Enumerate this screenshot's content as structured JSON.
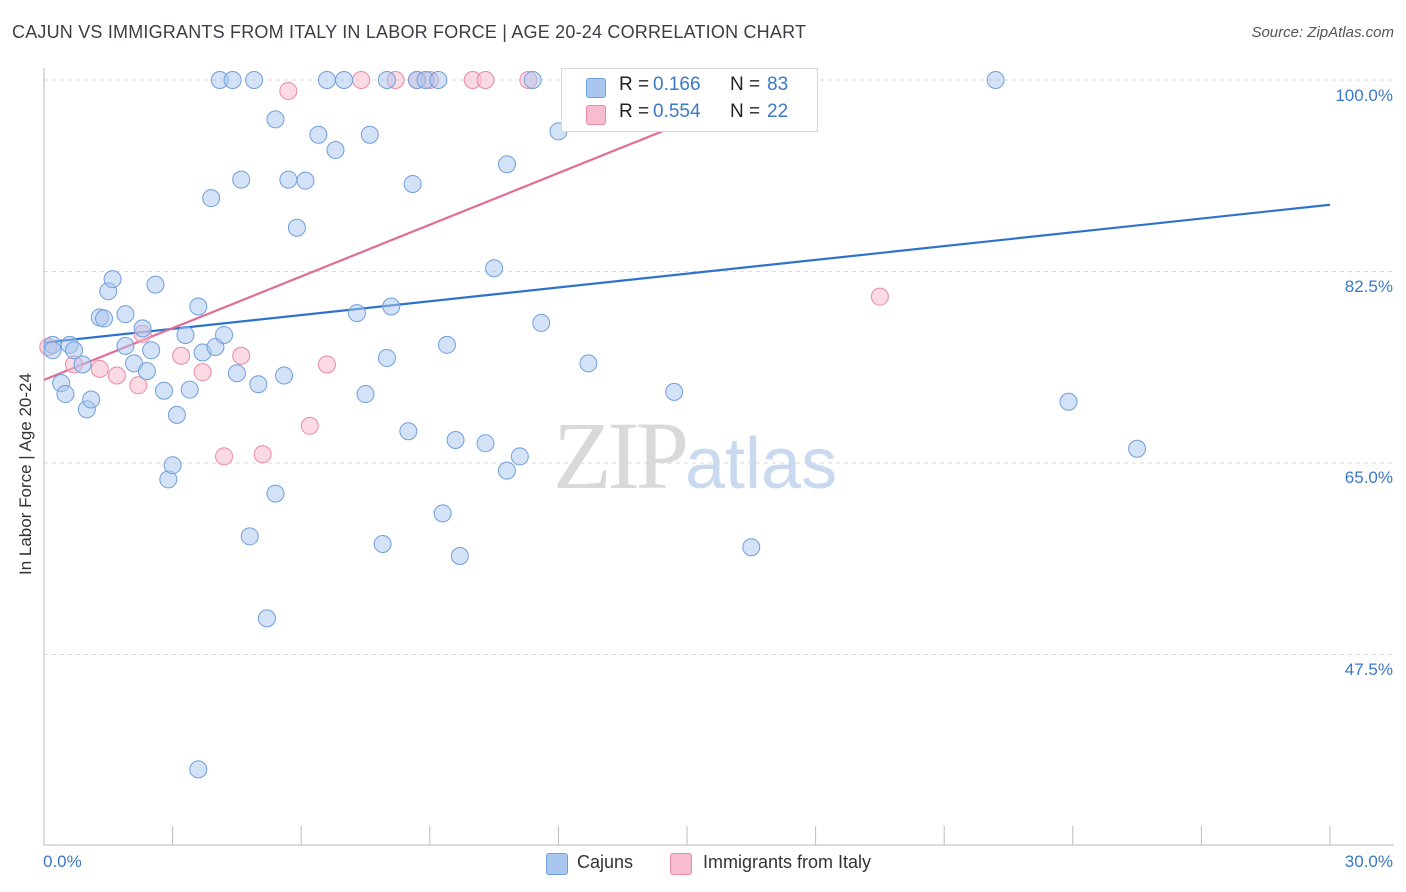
{
  "header": {
    "title": "CAJUN VS IMMIGRANTS FROM ITALY IN LABOR FORCE | AGE 20-24 CORRELATION CHART",
    "source": "Source: ZipAtlas.com"
  },
  "watermark": {
    "zip": "ZIP",
    "atlas": "atlas"
  },
  "legend": {
    "cajuns": {
      "r_label": "R =",
      "r_value": "0.166",
      "n_label": "N =",
      "n_value": "83"
    },
    "italy": {
      "r_label": "R =",
      "r_value": "0.554",
      "n_label": "N =",
      "n_value": "22"
    }
  },
  "bottom_legend": {
    "cajuns": "Cajuns",
    "italy": "Immigrants from Italy"
  },
  "colors": {
    "cajun_fill": "#a9c6ef",
    "cajun_stroke": "#6f9fdc",
    "cajun_line": "#2f72c9",
    "italy_fill": "#f7bccd",
    "italy_stroke": "#e98aa6",
    "italy_line": "#e06d95",
    "tick_text": "#3a78c8"
  },
  "axes": {
    "ylabel": "In Labor Force | Age 20-24",
    "yticks": [
      "100.0%",
      "82.5%",
      "65.0%",
      "47.5%"
    ],
    "xticks": [
      "0.0%",
      "30.0%"
    ]
  },
  "chart_data": {
    "type": "scatter",
    "title": "CAJUN VS IMMIGRANTS FROM ITALY IN LABOR FORCE | AGE 20-24 CORRELATION CHART",
    "xlabel": "",
    "ylabel": "In Labor Force | Age 20-24",
    "xlim": [
      0,
      30
    ],
    "ylim": [
      31,
      102
    ],
    "grid": true,
    "series": [
      {
        "name": "Cajuns",
        "r": 0.166,
        "n": 83,
        "trend": {
          "x": [
            0,
            30
          ],
          "y": [
            76.0,
            88.6
          ]
        },
        "points": [
          [
            0.2,
            75.8
          ],
          [
            0.2,
            75.3
          ],
          [
            0.4,
            72.3
          ],
          [
            0.5,
            71.3
          ],
          [
            0.6,
            75.8
          ],
          [
            0.7,
            75.3
          ],
          [
            0.9,
            74.0
          ],
          [
            1.0,
            69.9
          ],
          [
            1.1,
            70.8
          ],
          [
            1.3,
            78.3
          ],
          [
            1.4,
            78.2
          ],
          [
            1.5,
            80.7
          ],
          [
            1.6,
            81.8
          ],
          [
            1.9,
            75.7
          ],
          [
            1.9,
            78.6
          ],
          [
            2.1,
            74.1
          ],
          [
            2.3,
            77.3
          ],
          [
            2.4,
            73.4
          ],
          [
            2.5,
            75.3
          ],
          [
            2.6,
            81.3
          ],
          [
            2.8,
            71.6
          ],
          [
            2.9,
            63.5
          ],
          [
            3.0,
            64.8
          ],
          [
            3.1,
            69.4
          ],
          [
            3.3,
            76.7
          ],
          [
            3.4,
            71.7
          ],
          [
            3.6,
            79.3
          ],
          [
            3.7,
            75.1
          ],
          [
            3.9,
            89.2
          ],
          [
            4.0,
            75.6
          ],
          [
            4.1,
            100.0
          ],
          [
            4.2,
            76.7
          ],
          [
            4.4,
            100.0
          ],
          [
            4.5,
            73.2
          ],
          [
            4.6,
            90.9
          ],
          [
            4.8,
            58.3
          ],
          [
            5.0,
            72.2
          ],
          [
            5.2,
            50.8
          ],
          [
            5.4,
            62.2
          ],
          [
            5.4,
            96.4
          ],
          [
            5.6,
            73.0
          ],
          [
            5.7,
            90.9
          ],
          [
            5.9,
            86.5
          ],
          [
            6.1,
            90.8
          ],
          [
            6.4,
            95.0
          ],
          [
            6.6,
            100.0
          ],
          [
            6.8,
            93.6
          ],
          [
            7.0,
            100.0
          ],
          [
            7.3,
            78.7
          ],
          [
            7.5,
            71.3
          ],
          [
            7.6,
            95.0
          ],
          [
            7.9,
            57.6
          ],
          [
            8.0,
            74.6
          ],
          [
            8.1,
            79.3
          ],
          [
            8.5,
            67.9
          ],
          [
            8.6,
            90.5
          ],
          [
            8.7,
            100.0
          ],
          [
            8.9,
            100.0
          ],
          [
            9.2,
            100.0
          ],
          [
            9.3,
            60.4
          ],
          [
            9.4,
            75.8
          ],
          [
            9.6,
            67.1
          ],
          [
            9.7,
            56.5
          ],
          [
            10.3,
            66.8
          ],
          [
            10.5,
            82.8
          ],
          [
            10.8,
            92.3
          ],
          [
            10.8,
            64.3
          ],
          [
            11.1,
            65.6
          ],
          [
            11.4,
            100.0
          ],
          [
            11.6,
            77.8
          ],
          [
            12.0,
            95.3
          ],
          [
            12.7,
            74.1
          ],
          [
            13.0,
            100.0
          ],
          [
            14.7,
            71.5
          ],
          [
            14.8,
            100.0
          ],
          [
            16.5,
            57.3
          ],
          [
            17.5,
            100.0
          ],
          [
            22.2,
            100.0
          ],
          [
            23.9,
            70.6
          ],
          [
            25.5,
            66.3
          ],
          [
            4.9,
            100.0
          ],
          [
            3.6,
            37.0
          ],
          [
            8.0,
            100.0
          ]
        ]
      },
      {
        "name": "Immigrants from Italy",
        "r": 0.554,
        "n": 22,
        "trend": {
          "x": [
            0,
            17.4
          ],
          "y": [
            72.6,
            100.0
          ]
        },
        "points": [
          [
            0.1,
            75.6
          ],
          [
            0.7,
            74.0
          ],
          [
            1.3,
            73.6
          ],
          [
            1.7,
            73.0
          ],
          [
            2.2,
            72.1
          ],
          [
            2.3,
            76.8
          ],
          [
            3.2,
            74.8
          ],
          [
            3.7,
            73.3
          ],
          [
            4.2,
            65.6
          ],
          [
            4.6,
            74.8
          ],
          [
            5.1,
            65.8
          ],
          [
            5.7,
            99.0
          ],
          [
            6.2,
            68.4
          ],
          [
            6.6,
            74.0
          ],
          [
            7.4,
            100.0
          ],
          [
            8.2,
            100.0
          ],
          [
            8.7,
            100.0
          ],
          [
            9.0,
            100.0
          ],
          [
            10.0,
            100.0
          ],
          [
            10.3,
            100.0
          ],
          [
            11.3,
            100.0
          ],
          [
            19.5,
            80.2
          ]
        ]
      }
    ]
  }
}
